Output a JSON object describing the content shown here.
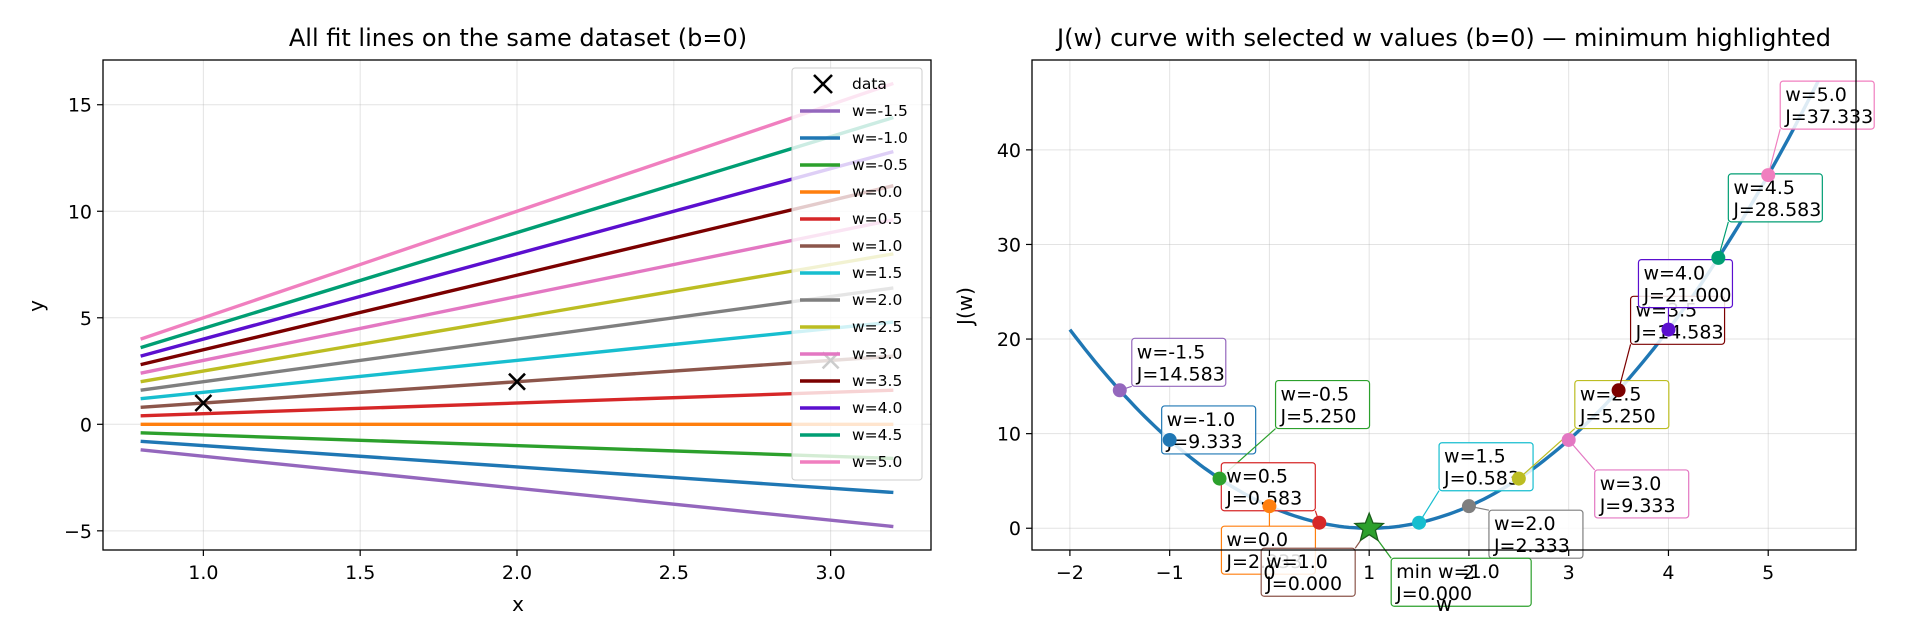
{
  "chart_data": [
    {
      "type": "line",
      "title": "All fit lines on the same dataset (b=0)",
      "xlabel": "x",
      "ylabel": "y",
      "xlim": [
        0.68,
        3.32
      ],
      "ylim": [
        -5.9,
        17.1
      ],
      "xticks": [
        "1.0",
        "1.5",
        "2.0",
        "2.5",
        "3.0"
      ],
      "xtick_values": [
        1.0,
        1.5,
        2.0,
        2.5,
        3.0
      ],
      "yticks": [
        "−5",
        "0",
        "5",
        "10",
        "15"
      ],
      "ytick_values": [
        -5,
        0,
        5,
        10,
        15
      ],
      "line_x_range": [
        0.8,
        3.2
      ],
      "grid": true,
      "legend_position": "top-right",
      "data_points": {
        "name": "data",
        "marker": "x",
        "color": "#000000",
        "points": [
          [
            1.0,
            1.0
          ],
          [
            2.0,
            2.0
          ],
          [
            3.0,
            3.0
          ]
        ]
      },
      "series": [
        {
          "name": "w=-1.5",
          "w": -1.5,
          "color": "#9467bd"
        },
        {
          "name": "w=-1.0",
          "w": -1.0,
          "color": "#1f77b4"
        },
        {
          "name": "w=-0.5",
          "w": -0.5,
          "color": "#2ca02c"
        },
        {
          "name": "w=0.0",
          "w": 0.0,
          "color": "#ff7f0e"
        },
        {
          "name": "w=0.5",
          "w": 0.5,
          "color": "#d62728"
        },
        {
          "name": "w=1.0",
          "w": 1.0,
          "color": "#8c564b"
        },
        {
          "name": "w=1.5",
          "w": 1.5,
          "color": "#17becf"
        },
        {
          "name": "w=2.0",
          "w": 2.0,
          "color": "#7f7f7f"
        },
        {
          "name": "w=2.5",
          "w": 2.5,
          "color": "#bcbd22"
        },
        {
          "name": "w=3.0",
          "w": 3.0,
          "color": "#e377c2"
        },
        {
          "name": "w=3.5",
          "w": 3.5,
          "color": "#7b0000"
        },
        {
          "name": "w=4.0",
          "w": 4.0,
          "color": "#5b0fcf"
        },
        {
          "name": "w=4.5",
          "w": 4.5,
          "color": "#009e73"
        },
        {
          "name": "w=5.0",
          "w": 5.0,
          "color": "#f07fbf"
        }
      ]
    },
    {
      "type": "line",
      "title": "J(w) curve with selected w values (b=0) — minimum highlighted",
      "xlabel": "w",
      "ylabel": "J(w)",
      "xlim": [
        -2.38,
        5.88
      ],
      "ylim": [
        -2.3,
        49.5
      ],
      "xticks": [
        "−2",
        "−1",
        "0",
        "1",
        "2",
        "3",
        "4",
        "5"
      ],
      "xtick_values": [
        -2,
        -1,
        0,
        1,
        2,
        3,
        4,
        5
      ],
      "yticks": [
        "0",
        "10",
        "20",
        "30",
        "40"
      ],
      "ytick_values": [
        0,
        10,
        20,
        30,
        40
      ],
      "grid": true,
      "curve": {
        "color": "#1f77b4",
        "w_range": [
          -2.0,
          5.5
        ],
        "formula": "J(w) = (7/3)(w-1)^2"
      },
      "selected_points": [
        {
          "w": -1.5,
          "J": 14.583,
          "color": "#9467bd",
          "label_w": "w=-1.5",
          "label_J": "J=14.583"
        },
        {
          "w": -1.0,
          "J": 9.333,
          "color": "#1f77b4",
          "label_w": "w=-1.0",
          "label_J": "J=9.333"
        },
        {
          "w": -0.5,
          "J": 5.25,
          "color": "#2ca02c",
          "label_w": "w=-0.5",
          "label_J": "J=5.250"
        },
        {
          "w": 0.0,
          "J": 2.333,
          "color": "#ff7f0e",
          "label_w": "w=0.0",
          "label_J": "J=2.333"
        },
        {
          "w": 0.5,
          "J": 0.583,
          "color": "#d62728",
          "label_w": "w=0.5",
          "label_J": "J=0.583"
        },
        {
          "w": 1.0,
          "J": 0.0,
          "color": "#8c564b",
          "label_w": "w=1.0",
          "label_J": "J=0.000"
        },
        {
          "w": 1.5,
          "J": 0.583,
          "color": "#17becf",
          "label_w": "w=1.5",
          "label_J": "J=0.583"
        },
        {
          "w": 2.0,
          "J": 2.333,
          "color": "#7f7f7f",
          "label_w": "w=2.0",
          "label_J": "J=2.333"
        },
        {
          "w": 2.5,
          "J": 5.25,
          "color": "#bcbd22",
          "label_w": "w=2.5",
          "label_J": "J=5.250"
        },
        {
          "w": 3.0,
          "J": 9.333,
          "color": "#e377c2",
          "label_w": "w=3.0",
          "label_J": "J=9.333"
        },
        {
          "w": 3.5,
          "J": 14.583,
          "color": "#7b0000",
          "label_w": "w=3.5",
          "label_J": "J=14.583"
        },
        {
          "w": 4.0,
          "J": 21.0,
          "color": "#5b0fcf",
          "label_w": "w=4.0",
          "label_J": "J=21.000"
        },
        {
          "w": 4.5,
          "J": 28.583,
          "color": "#009e73",
          "label_w": "w=4.5",
          "label_J": "J=28.583"
        },
        {
          "w": 5.0,
          "J": 37.333,
          "color": "#f07fbf",
          "label_w": "w=5.0",
          "label_J": "J=37.333"
        }
      ],
      "minimum": {
        "w": 1.0,
        "J": 0.0,
        "marker": "star",
        "color": "#2ca02c",
        "label_w": "min w=1.0",
        "label_J": "J=0.000"
      }
    }
  ]
}
